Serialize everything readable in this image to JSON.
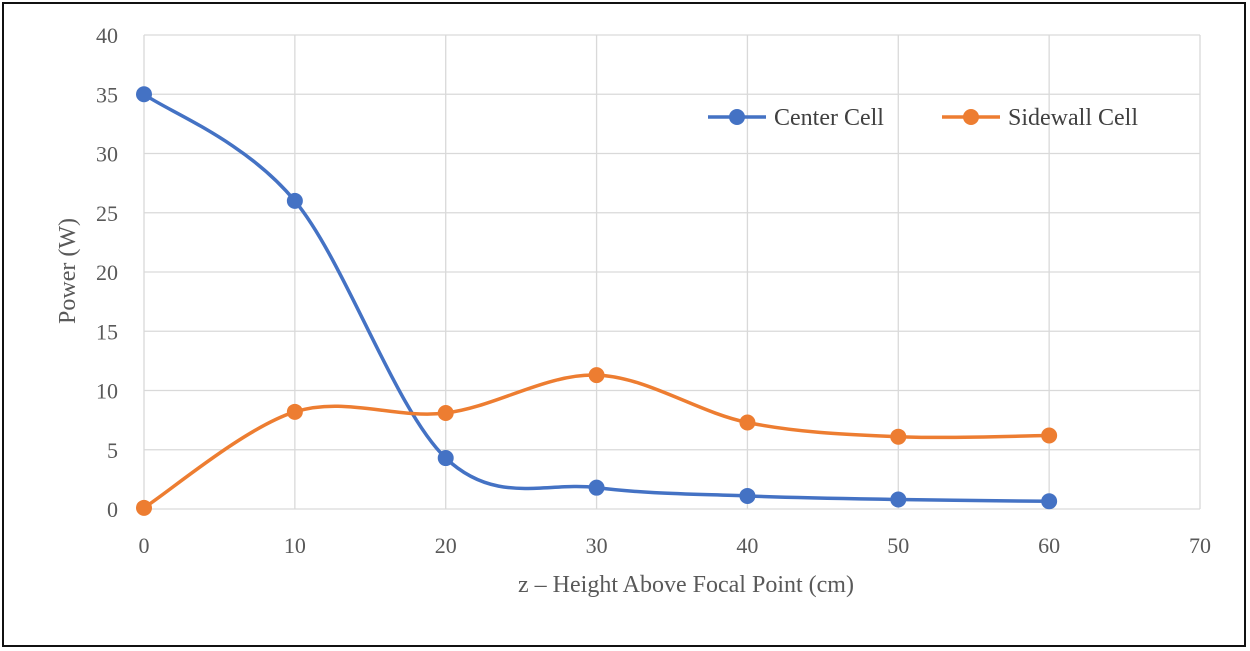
{
  "chart_data": {
    "type": "scatter",
    "title": "",
    "xlabel": "z – Height Above Focal Point (cm)",
    "ylabel": "Power (W)",
    "xlim": [
      0,
      70
    ],
    "ylim": [
      0,
      40
    ],
    "xticks": [
      0,
      10,
      20,
      30,
      40,
      50,
      60,
      70
    ],
    "yticks": [
      0,
      5,
      10,
      15,
      20,
      25,
      30,
      35,
      40
    ],
    "grid": true,
    "legend_position": "top-right",
    "series": [
      {
        "name": "Center Cell",
        "color": "#4472c4",
        "x": [
          0,
          10,
          20,
          30,
          40,
          50,
          60
        ],
        "y": [
          35,
          26,
          4.3,
          1.8,
          1.1,
          0.8,
          0.65
        ]
      },
      {
        "name": "Sidewall Cell",
        "color": "#ed7d31",
        "x": [
          0,
          10,
          20,
          30,
          40,
          50,
          60
        ],
        "y": [
          0.1,
          8.2,
          8.1,
          11.3,
          7.3,
          6.1,
          6.2
        ]
      }
    ]
  }
}
